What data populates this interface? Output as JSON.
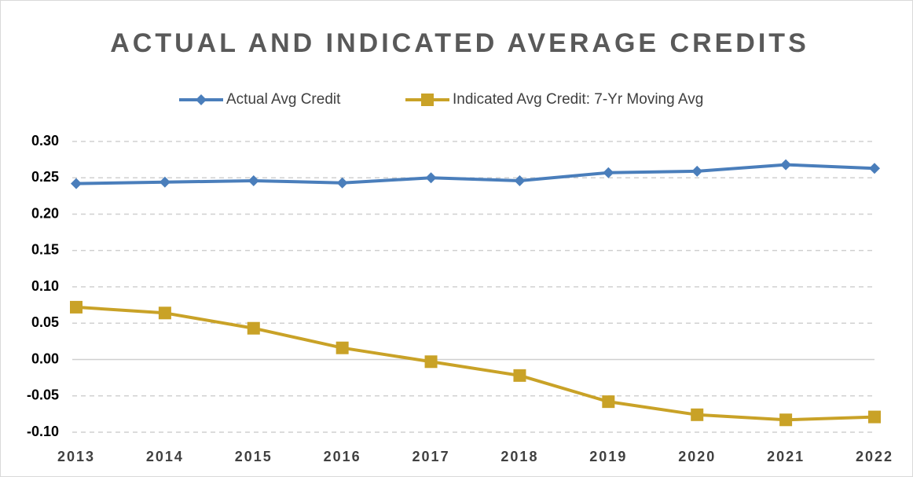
{
  "chart_data": {
    "type": "line",
    "title": "ACTUAL AND INDICATED AVERAGE CREDITS",
    "categories": [
      "2013",
      "2014",
      "2015",
      "2016",
      "2017",
      "2018",
      "2019",
      "2020",
      "2021",
      "2022"
    ],
    "series": [
      {
        "name": "Actual Avg Credit",
        "color": "#4a7ebb",
        "marker": "diamond",
        "values": [
          0.242,
          0.244,
          0.246,
          0.243,
          0.25,
          0.246,
          0.257,
          0.259,
          0.268,
          0.263
        ]
      },
      {
        "name": "Indicated Avg Credit: 7-Yr Moving Avg",
        "color": "#c9a227",
        "marker": "square",
        "values": [
          0.072,
          0.064,
          0.043,
          0.016,
          -0.003,
          -0.022,
          -0.058,
          -0.076,
          -0.083,
          -0.079
        ]
      }
    ],
    "ylim": [
      -0.1,
      0.3
    ],
    "yticks": [
      {
        "value": -0.1,
        "label": "-0.10"
      },
      {
        "value": -0.05,
        "label": "-0.05"
      },
      {
        "value": 0,
        "label": "0.00"
      },
      {
        "value": 0.05,
        "label": "0.05"
      },
      {
        "value": 0.1,
        "label": "0.10"
      },
      {
        "value": 0.15,
        "label": "0.15"
      },
      {
        "value": 0.2,
        "label": "0.20"
      },
      {
        "value": 0.25,
        "label": "0.25"
      },
      {
        "value": 0.3,
        "label": "0.30"
      }
    ],
    "grid": true,
    "legend": "top"
  }
}
